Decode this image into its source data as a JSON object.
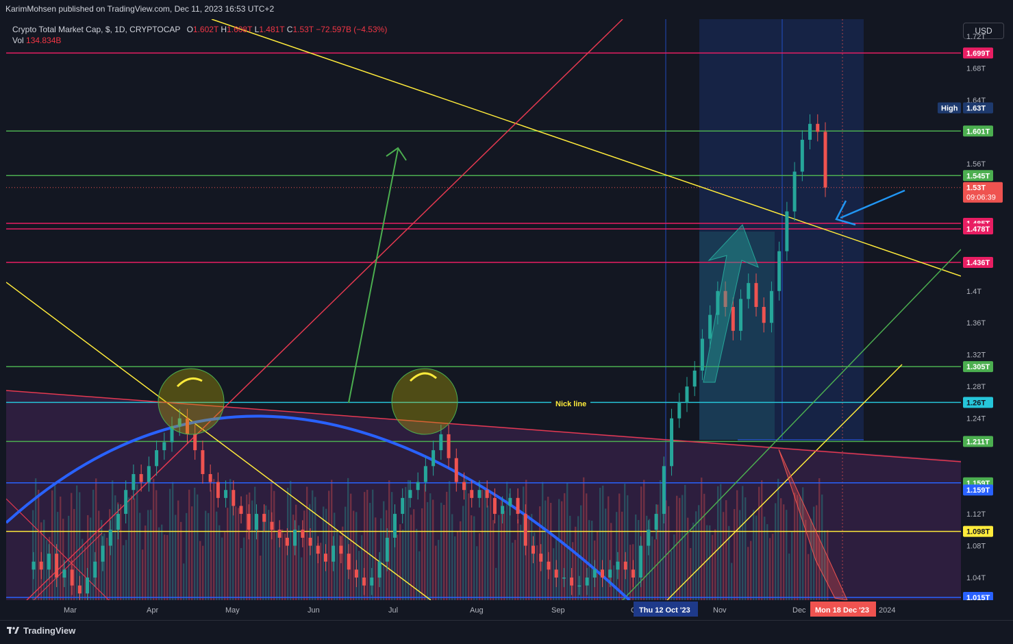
{
  "header": {
    "publisher": "KarimMohsen published on TradingView.com, Dec 11, 2023 16:53 UTC+2"
  },
  "legend": {
    "symbol": "Crypto Total Market Cap, $, 1D, CRYPTOCAP",
    "o_label": "O",
    "o_value": "1.602T",
    "h_label": "H",
    "h_value": "1.608T",
    "l_label": "L",
    "l_value": "1.481T",
    "c_label": "C",
    "c_value": "1.53T",
    "change": "−72.597B (−4.53%)",
    "vol_label": "Vol",
    "vol_value": "134.834B"
  },
  "currency_button": "USD",
  "footer": {
    "brand": "TradingView"
  },
  "annotations": {
    "nick_line": "Nick line",
    "high_label": "High",
    "high_value": "1.63T",
    "last_price": "1.53T",
    "countdown": "09:06:39",
    "crosshair_date_left": "Thu 12 Oct '23",
    "crosshair_date_right": "Mon 18 Dec '23"
  },
  "colors": {
    "background": "#131722",
    "up": "#26a69a",
    "down": "#ef5350",
    "green_level": "#4caf50",
    "pink_level": "#e91e63",
    "yellow": "#ffeb3b",
    "cyan": "#26c6da",
    "blue": "#2962ff"
  },
  "chart_data": {
    "type": "candlestick",
    "title": "Crypto Total Market Cap, $, 1D, CRYPTOCAP",
    "x_axis_labels": [
      "Mar",
      "Apr",
      "May",
      "Jun",
      "Jul",
      "Aug",
      "Sep",
      "Oct",
      "Nov",
      "Dec",
      "2024"
    ],
    "y_axis_ticks": [
      "1.04T",
      "1.08T",
      "1.12T",
      "1.16T",
      "1.21T",
      "1.24T",
      "1.28T",
      "1.32T",
      "1.36T",
      "1.4T",
      "1.44T",
      "1.48T",
      "1.52T",
      "1.56T",
      "1.6T",
      "1.64T",
      "1.68T",
      "1.72T"
    ],
    "y_range": [
      1.015,
      1.72
    ],
    "price_levels": [
      {
        "label": "1.699T",
        "value": 1.699,
        "color": "#e91e63"
      },
      {
        "label": "1.601T",
        "value": 1.601,
        "color": "#4caf50"
      },
      {
        "label": "1.545T",
        "value": 1.545,
        "color": "#4caf50"
      },
      {
        "label": "1.485T",
        "value": 1.485,
        "color": "#e91e63"
      },
      {
        "label": "1.478T",
        "value": 1.478,
        "color": "#e91e63"
      },
      {
        "label": "1.436T",
        "value": 1.436,
        "color": "#e91e63"
      },
      {
        "label": "1.305T",
        "value": 1.305,
        "color": "#4caf50"
      },
      {
        "label": "1.26T",
        "value": 1.26,
        "color": "#26c6da"
      },
      {
        "label": "1.211T",
        "value": 1.211,
        "color": "#4caf50"
      },
      {
        "label": "1.159T",
        "value": 1.159,
        "color": "#4caf50"
      },
      {
        "label": "1.159T",
        "value": 1.159,
        "color": "#2962ff"
      },
      {
        "label": "1.098T",
        "value": 1.098,
        "color": "#ffeb3b"
      },
      {
        "label": "1.015T",
        "value": 1.015,
        "color": "#2962ff"
      }
    ],
    "last_price": 1.53,
    "high": 1.63,
    "series_closes": [
      1.06,
      1.05,
      1.07,
      1.04,
      1.05,
      1.03,
      1.02,
      1.04,
      1.06,
      1.08,
      1.1,
      1.12,
      1.15,
      1.17,
      1.16,
      1.18,
      1.2,
      1.21,
      1.23,
      1.24,
      1.22,
      1.2,
      1.17,
      1.16,
      1.14,
      1.15,
      1.13,
      1.12,
      1.1,
      1.12,
      1.11,
      1.1,
      1.09,
      1.08,
      1.1,
      1.09,
      1.08,
      1.07,
      1.06,
      1.08,
      1.07,
      1.05,
      1.04,
      1.03,
      1.04,
      1.06,
      1.09,
      1.12,
      1.14,
      1.15,
      1.16,
      1.18,
      1.2,
      1.22,
      1.19,
      1.16,
      1.15,
      1.14,
      1.15,
      1.14,
      1.12,
      1.13,
      1.14,
      1.12,
      1.08,
      1.07,
      1.06,
      1.05,
      1.04,
      1.04,
      1.03,
      1.03,
      1.04,
      1.05,
      1.04,
      1.05,
      1.06,
      1.05,
      1.04,
      1.08,
      1.1,
      1.12,
      1.18,
      1.24,
      1.26,
      1.28,
      1.3,
      1.34,
      1.37,
      1.4,
      1.38,
      1.35,
      1.39,
      1.41,
      1.38,
      1.36,
      1.4,
      1.45,
      1.5,
      1.55,
      1.59,
      1.61,
      1.6,
      1.53
    ]
  }
}
